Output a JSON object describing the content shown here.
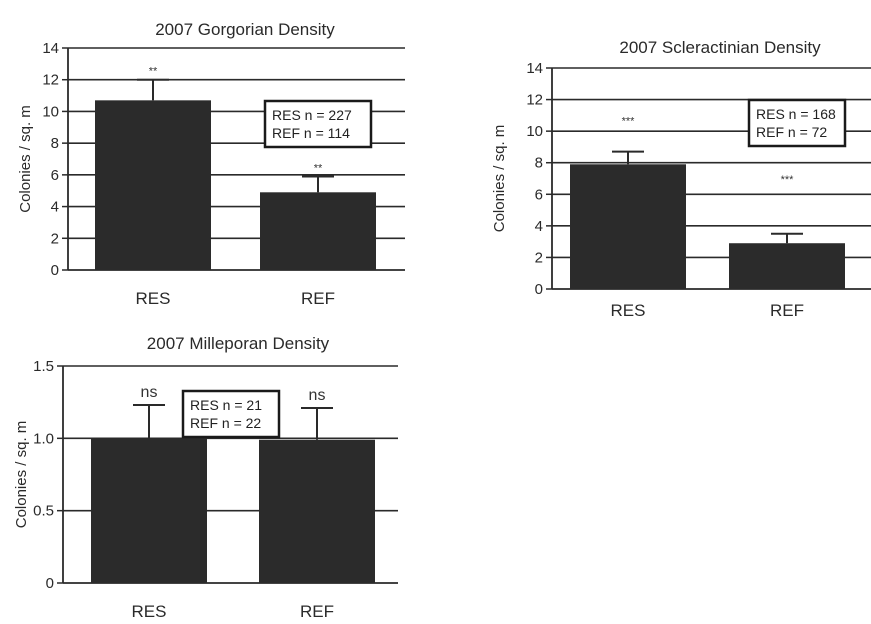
{
  "chart_data": [
    {
      "type": "bar",
      "title": "2007 Gorgorian Density",
      "ylabel": "Colonies / sq. m",
      "xlabel": "",
      "categories": [
        "RES",
        "REF"
      ],
      "values": [
        10.7,
        4.9
      ],
      "errors": [
        1.3,
        1.0
      ],
      "significance": [
        "**",
        "**"
      ],
      "ylim": [
        0,
        14
      ],
      "yticks": [
        "0",
        "2",
        "4",
        "6",
        "8",
        "10",
        "12",
        "14"
      ],
      "legend": [
        "RES n = 227",
        "REF n = 114"
      ],
      "legend_position": "top-right",
      "grid": true,
      "bar_color": "#2b2b2b"
    },
    {
      "type": "bar",
      "title": "2007 Scleractinian Density",
      "ylabel": "Colonies / sq. m",
      "xlabel": "",
      "categories": [
        "RES",
        "REF"
      ],
      "values": [
        7.9,
        2.9
      ],
      "errors": [
        0.8,
        0.6
      ],
      "significance": [
        "***",
        "***"
      ],
      "ylim": [
        0,
        14
      ],
      "yticks": [
        "0",
        "2",
        "4",
        "6",
        "8",
        "10",
        "12",
        "14"
      ],
      "legend": [
        "RES n = 168",
        "REF n = 72"
      ],
      "legend_position": "top-right",
      "grid": true,
      "bar_color": "#2b2b2b"
    },
    {
      "type": "bar",
      "title": "2007 Milleporan Density",
      "ylabel": "Colonies / sq. m",
      "xlabel": "",
      "categories": [
        "RES",
        "REF"
      ],
      "values": [
        1.0,
        0.99
      ],
      "errors": [
        0.23,
        0.22
      ],
      "significance": [
        "ns",
        "ns"
      ],
      "ylim": [
        0,
        1.5
      ],
      "yticks": [
        "0",
        "0.5",
        "1.0",
        "1.5"
      ],
      "legend": [
        "RES n = 21",
        "REF n = 22"
      ],
      "legend_position": "top-center",
      "grid": true,
      "bar_color": "#2b2b2b"
    }
  ]
}
